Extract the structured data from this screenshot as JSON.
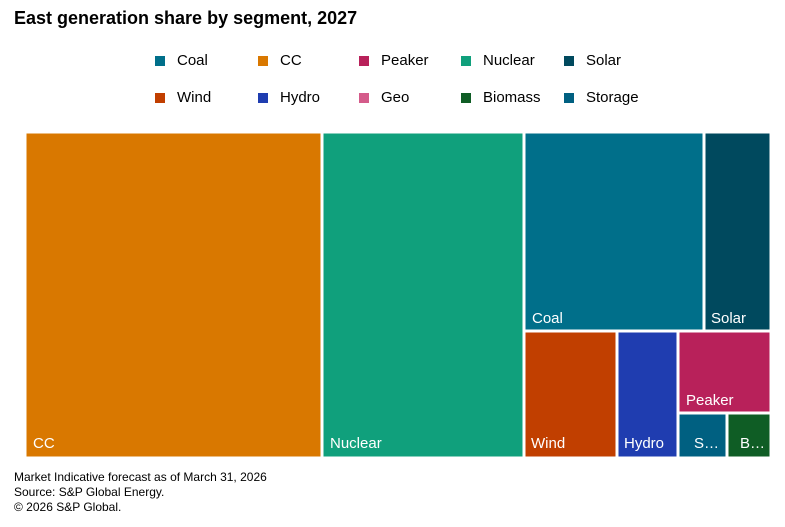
{
  "chart_data": {
    "type": "treemap",
    "title": "East generation share by segment, 2027",
    "legend": {
      "placement": "top",
      "entries": [
        {
          "name": "Coal",
          "color": "#006f8a"
        },
        {
          "name": "CC",
          "color": "#d97800"
        },
        {
          "name": "Peaker",
          "color": "#b8215a"
        },
        {
          "name": "Nuclear",
          "color": "#10a07c"
        },
        {
          "name": "Solar",
          "color": "#00495e"
        },
        {
          "name": "Wind",
          "color": "#c13f00"
        },
        {
          "name": "Hydro",
          "color": "#1f3db0"
        },
        {
          "name": "Geo",
          "color": "#d45b8a"
        },
        {
          "name": "Biomass",
          "color": "#0f5d25"
        },
        {
          "name": "Storage",
          "color": "#006081"
        }
      ]
    },
    "segments": [
      {
        "name": "CC",
        "label": "CC",
        "share_pct": 39.5,
        "color": "#d97800"
      },
      {
        "name": "Nuclear",
        "label": "Nuclear",
        "share_pct": 26.5,
        "color": "#10a07c"
      },
      {
        "name": "Coal",
        "label": "Coal",
        "share_pct": 14.2,
        "color": "#006f8a"
      },
      {
        "name": "Solar",
        "label": "Solar",
        "share_pct": 5.2,
        "color": "#00495e"
      },
      {
        "name": "Wind",
        "label": "Wind",
        "share_pct": 4.8,
        "color": "#c13f00"
      },
      {
        "name": "Hydro",
        "label": "Hydro",
        "share_pct": 3.0,
        "color": "#1f3db0"
      },
      {
        "name": "Peaker",
        "label": "Peaker",
        "share_pct": 3.3,
        "color": "#b8215a"
      },
      {
        "name": "Storage",
        "label": "S…",
        "share_pct": 1.7,
        "color": "#006081"
      },
      {
        "name": "Biomass",
        "label": "B…",
        "share_pct": 1.6,
        "color": "#0f5d25"
      }
    ]
  },
  "footer": {
    "line1": "Market Indicative forecast as of March 31, 2026",
    "line2": "Source: S&P Global Energy.",
    "line3": "© 2026 S&P Global."
  }
}
